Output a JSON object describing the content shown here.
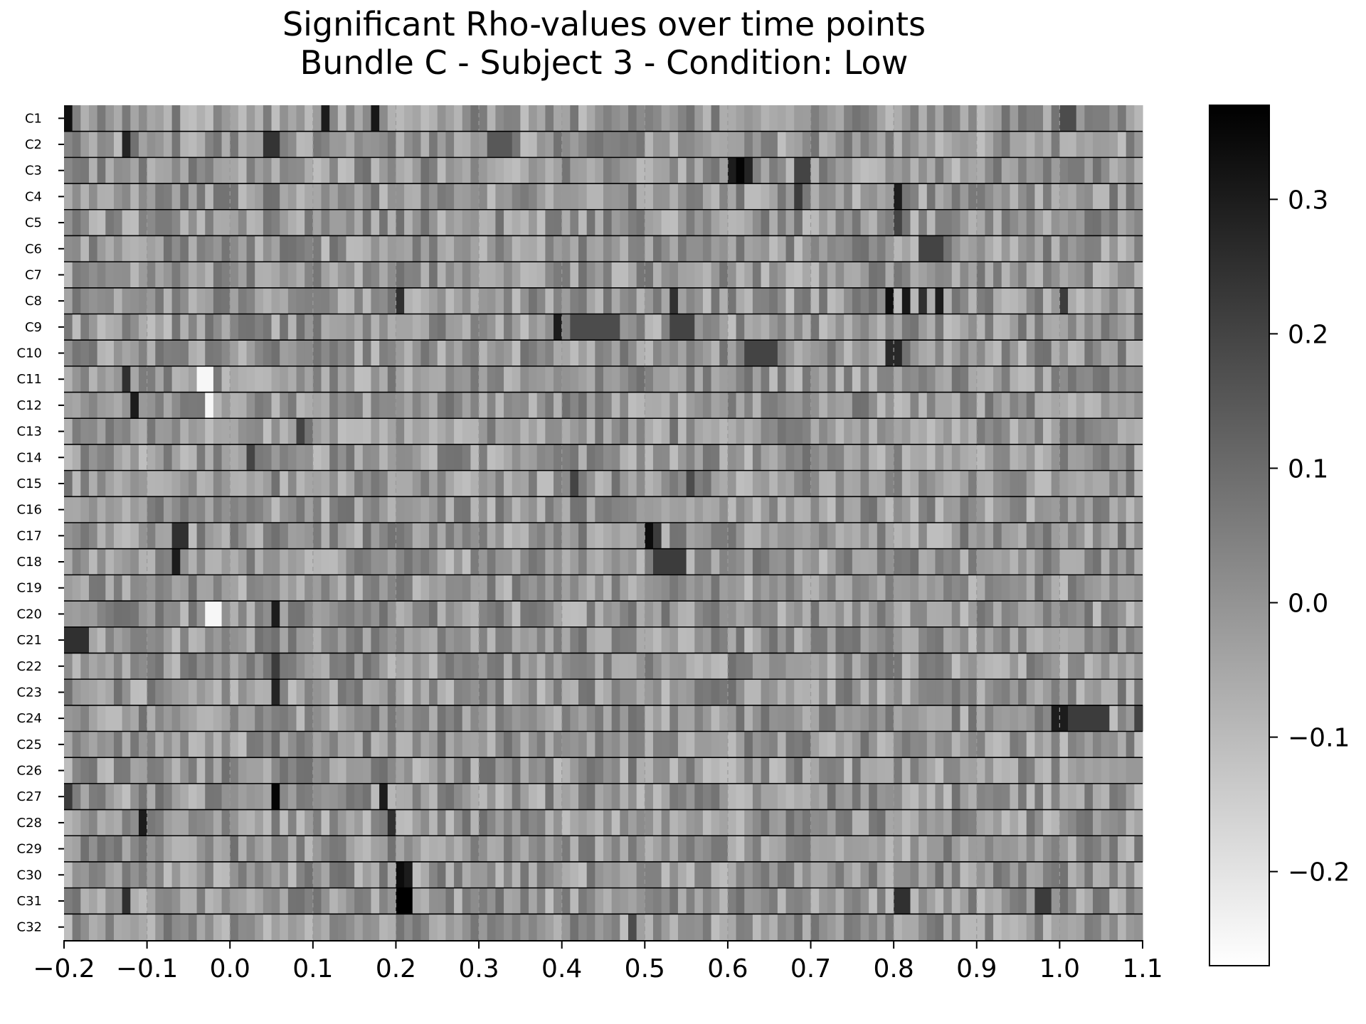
{
  "chart_data": {
    "type": "heatmap",
    "title_lines": [
      "Significant Rho-values over time points",
      "Bundle C - Subject 3 - Condition: Low"
    ],
    "xlabel": "",
    "ylabel": "",
    "rows": [
      "C1",
      "C2",
      "C3",
      "C4",
      "C5",
      "C6",
      "C7",
      "C8",
      "C9",
      "C10",
      "C11",
      "C12",
      "C13",
      "C14",
      "C15",
      "C16",
      "C17",
      "C18",
      "C19",
      "C20",
      "C21",
      "C22",
      "C23",
      "C24",
      "C25",
      "C26",
      "C27",
      "C28",
      "C29",
      "C30",
      "C31",
      "C32"
    ],
    "xlim": [
      -0.2,
      1.1
    ],
    "x_ticks": [
      -0.2,
      -0.1,
      0.0,
      0.1,
      0.2,
      0.3,
      0.4,
      0.5,
      0.6,
      0.7,
      0.8,
      0.9,
      1.0,
      1.1
    ],
    "x_tick_labels": [
      "−0.2",
      "−0.1",
      "0.0",
      "0.1",
      "0.2",
      "0.3",
      "0.4",
      "0.5",
      "0.6",
      "0.7",
      "0.8",
      "0.9",
      "1.0",
      "1.1"
    ],
    "n_time_points": 130,
    "time_step": 0.01,
    "time_markers": [
      -0.1,
      0.0,
      0.1,
      0.2,
      0.3,
      0.4,
      0.5,
      0.6,
      0.7,
      0.8,
      0.9,
      1.0
    ],
    "colormap": "gray_r",
    "color_range": [
      -0.27,
      0.37
    ],
    "colorbar": {
      "ticks": [
        -0.2,
        -0.1,
        0.0,
        0.1,
        0.2,
        0.3
      ],
      "tick_labels": [
        "−0.2",
        "−0.1",
        "0.0",
        "0.1",
        "0.2",
        "0.3"
      ]
    },
    "baseline_rho": -0.02,
    "features": [
      {
        "row": 0,
        "t0": -0.2,
        "t1": -0.19,
        "rho": 0.33
      },
      {
        "row": 0,
        "t0": 0.11,
        "t1": 0.12,
        "rho": 0.3
      },
      {
        "row": 0,
        "t0": 0.17,
        "t1": 0.18,
        "rho": 0.31
      },
      {
        "row": 0,
        "t0": 1.0,
        "t1": 1.02,
        "rho": 0.18
      },
      {
        "row": 1,
        "t0": -0.13,
        "t1": -0.12,
        "rho": 0.28
      },
      {
        "row": 1,
        "t0": 0.04,
        "t1": 0.06,
        "rho": 0.24
      },
      {
        "row": 1,
        "t0": 0.31,
        "t1": 0.34,
        "rho": 0.15
      },
      {
        "row": 2,
        "t0": 0.6,
        "t1": 0.61,
        "rho": 0.3
      },
      {
        "row": 2,
        "t0": 0.61,
        "t1": 0.62,
        "rho": 0.36
      },
      {
        "row": 2,
        "t0": 0.62,
        "t1": 0.63,
        "rho": 0.28
      },
      {
        "row": 2,
        "t0": 0.68,
        "t1": 0.7,
        "rho": 0.2
      },
      {
        "row": 3,
        "t0": 0.8,
        "t1": 0.81,
        "rho": 0.3
      },
      {
        "row": 3,
        "t0": 0.68,
        "t1": 0.69,
        "rho": 0.22
      },
      {
        "row": 4,
        "t0": 0.8,
        "t1": 0.81,
        "rho": 0.2
      },
      {
        "row": 5,
        "t0": 0.83,
        "t1": 0.86,
        "rho": 0.2
      },
      {
        "row": 7,
        "t0": 0.2,
        "t1": 0.21,
        "rho": 0.25
      },
      {
        "row": 7,
        "t0": 0.53,
        "t1": 0.54,
        "rho": 0.25
      },
      {
        "row": 7,
        "t0": 0.79,
        "t1": 0.8,
        "rho": 0.33
      },
      {
        "row": 7,
        "t0": 0.81,
        "t1": 0.82,
        "rho": 0.31
      },
      {
        "row": 7,
        "t0": 0.83,
        "t1": 0.84,
        "rho": 0.25
      },
      {
        "row": 7,
        "t0": 0.85,
        "t1": 0.86,
        "rho": 0.3
      },
      {
        "row": 7,
        "t0": 1.0,
        "t1": 1.01,
        "rho": 0.22
      },
      {
        "row": 8,
        "t0": 0.39,
        "t1": 0.4,
        "rho": 0.3
      },
      {
        "row": 8,
        "t0": 0.41,
        "t1": 0.47,
        "rho": 0.18
      },
      {
        "row": 8,
        "t0": 0.53,
        "t1": 0.56,
        "rho": 0.2
      },
      {
        "row": 9,
        "t0": 0.79,
        "t1": 0.81,
        "rho": 0.27
      },
      {
        "row": 9,
        "t0": 0.62,
        "t1": 0.66,
        "rho": 0.2
      },
      {
        "row": 10,
        "t0": -0.13,
        "t1": -0.12,
        "rho": 0.25
      },
      {
        "row": 10,
        "t0": -0.04,
        "t1": -0.02,
        "rho": -0.25
      },
      {
        "row": 11,
        "t0": -0.12,
        "t1": -0.11,
        "rho": 0.3
      },
      {
        "row": 11,
        "t0": -0.03,
        "t1": -0.02,
        "rho": -0.25
      },
      {
        "row": 12,
        "t0": 0.08,
        "t1": 0.09,
        "rho": 0.2
      },
      {
        "row": 13,
        "t0": 0.02,
        "t1": 0.03,
        "rho": 0.2
      },
      {
        "row": 14,
        "t0": 0.41,
        "t1": 0.42,
        "rho": 0.2
      },
      {
        "row": 14,
        "t0": 0.55,
        "t1": 0.56,
        "rho": 0.18
      },
      {
        "row": 16,
        "t0": -0.07,
        "t1": -0.05,
        "rho": 0.25
      },
      {
        "row": 16,
        "t0": 0.5,
        "t1": 0.51,
        "rho": 0.34
      },
      {
        "row": 16,
        "t0": 0.51,
        "t1": 0.52,
        "rho": 0.22
      },
      {
        "row": 17,
        "t0": -0.07,
        "t1": -0.06,
        "rho": 0.3
      },
      {
        "row": 17,
        "t0": 0.51,
        "t1": 0.55,
        "rho": 0.22
      },
      {
        "row": 19,
        "t0": 0.05,
        "t1": 0.06,
        "rho": 0.3
      },
      {
        "row": 19,
        "t0": -0.03,
        "t1": -0.01,
        "rho": -0.25
      },
      {
        "row": 20,
        "t0": -0.2,
        "t1": -0.17,
        "rho": 0.25
      },
      {
        "row": 21,
        "t0": 0.05,
        "t1": 0.06,
        "rho": 0.22
      },
      {
        "row": 22,
        "t0": 0.05,
        "t1": 0.06,
        "rho": 0.28
      },
      {
        "row": 23,
        "t0": 0.99,
        "t1": 1.01,
        "rho": 0.3
      },
      {
        "row": 23,
        "t0": 1.01,
        "t1": 1.06,
        "rho": 0.22
      },
      {
        "row": 23,
        "t0": 1.09,
        "t1": 1.1,
        "rho": 0.2
      },
      {
        "row": 26,
        "t0": 0.05,
        "t1": 0.06,
        "rho": 0.36
      },
      {
        "row": 26,
        "t0": 0.18,
        "t1": 0.19,
        "rho": 0.3
      },
      {
        "row": 26,
        "t0": -0.2,
        "t1": -0.19,
        "rho": 0.22
      },
      {
        "row": 27,
        "t0": -0.11,
        "t1": -0.1,
        "rho": 0.3
      },
      {
        "row": 27,
        "t0": 0.19,
        "t1": 0.2,
        "rho": 0.25
      },
      {
        "row": 29,
        "t0": 0.2,
        "t1": 0.21,
        "rho": 0.34
      },
      {
        "row": 29,
        "t0": 0.21,
        "t1": 0.22,
        "rho": 0.3
      },
      {
        "row": 30,
        "t0": 0.2,
        "t1": 0.22,
        "rho": 0.37
      },
      {
        "row": 30,
        "t0": 0.8,
        "t1": 0.82,
        "rho": 0.25
      },
      {
        "row": 30,
        "t0": 0.97,
        "t1": 0.99,
        "rho": 0.22
      },
      {
        "row": 30,
        "t0": -0.13,
        "t1": -0.12,
        "rho": 0.25
      },
      {
        "row": 31,
        "t0": 0.48,
        "t1": 0.49,
        "rho": 0.18
      }
    ]
  }
}
